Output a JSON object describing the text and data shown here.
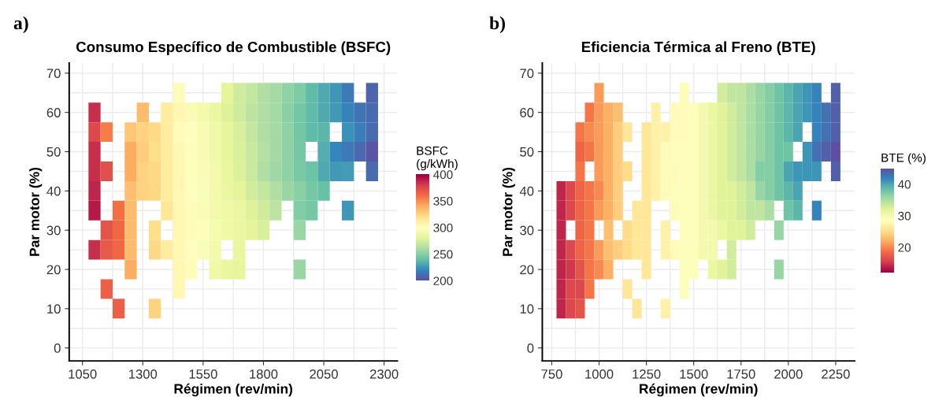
{
  "chart_data": [
    {
      "type": "heatmap",
      "title": "Consumo Específico de Combustible (BSFC)",
      "xlabel": "Régimen (rev/min)",
      "ylabel": "Par motor (%)",
      "clabel": "BSFC\n(g/kWh)",
      "annotations": [
        "a)"
      ],
      "x": [
        1100,
        1150,
        1200,
        1250,
        1300,
        1350,
        1400,
        1450,
        1500,
        1550,
        1600,
        1650,
        1700,
        1750,
        1800,
        1850,
        1900,
        1950,
        2000,
        2050,
        2100,
        2150,
        2200,
        2250
      ],
      "y": [
        65,
        60,
        55,
        50,
        45,
        40,
        35,
        30,
        25,
        20,
        15,
        10
      ],
      "cells": [
        [
          null,
          null,
          null,
          null,
          null,
          null,
          null,
          302,
          null,
          null,
          null,
          280,
          272,
          268,
          262,
          258,
          252,
          247,
          238,
          232,
          225,
          215,
          null,
          208
        ],
        [
          385,
          null,
          null,
          null,
          335,
          null,
          312,
          305,
          295,
          290,
          285,
          278,
          272,
          266,
          262,
          258,
          250,
          244,
          238,
          232,
          226,
          218,
          213,
          210
        ],
        [
          375,
          355,
          null,
          330,
          325,
          322,
          312,
          302,
          300,
          293,
          287,
          282,
          275,
          268,
          262,
          258,
          252,
          244,
          238,
          236,
          null,
          224,
          217,
          210
        ],
        [
          385,
          null,
          null,
          340,
          328,
          320,
          312,
          305,
          298,
          293,
          287,
          282,
          276,
          270,
          264,
          258,
          252,
          245,
          null,
          233,
          220,
          215,
          210,
          202
        ],
        [
          385,
          372,
          null,
          340,
          325,
          323,
          312,
          305,
          298,
          295,
          290,
          283,
          277,
          270,
          262,
          257,
          252,
          246,
          242,
          232,
          226,
          227,
          null,
          210
        ],
        [
          388,
          null,
          null,
          333,
          325,
          323,
          312,
          305,
          300,
          296,
          290,
          285,
          280,
          273,
          268,
          262,
          255,
          250,
          245,
          240,
          null,
          null,
          null,
          null
        ],
        [
          392,
          null,
          360,
          335,
          null,
          null,
          315,
          305,
          302,
          295,
          290,
          287,
          285,
          278,
          272,
          266,
          null,
          248,
          245,
          null,
          null,
          225,
          null,
          null
        ],
        [
          null,
          370,
          362,
          335,
          null,
          320,
          null,
          305,
          302,
          297,
          292,
          287,
          285,
          280,
          275,
          null,
          null,
          255,
          null,
          null,
          null,
          null,
          null,
          null
        ],
        [
          385,
          368,
          362,
          335,
          null,
          322,
          312,
          305,
          300,
          296,
          290,
          null,
          283,
          null,
          null,
          null,
          null,
          null,
          null,
          null,
          null,
          null,
          null,
          null
        ],
        [
          null,
          null,
          null,
          340,
          null,
          null,
          null,
          305,
          303,
          null,
          288,
          283,
          282,
          null,
          null,
          null,
          null,
          255,
          null,
          null,
          null,
          null,
          null,
          null
        ],
        [
          null,
          365,
          null,
          null,
          null,
          null,
          null,
          305,
          null,
          null,
          null,
          null,
          null,
          null,
          null,
          null,
          null,
          null,
          null,
          null,
          null,
          null,
          null,
          null
        ],
        [
          null,
          null,
          365,
          null,
          null,
          325,
          null,
          null,
          null,
          null,
          null,
          null,
          null,
          null,
          null,
          null,
          null,
          null,
          null,
          null,
          null,
          null,
          null,
          null
        ]
      ],
      "clim": [
        400,
        200
      ],
      "cticks": [
        200,
        250,
        300,
        350,
        400
      ],
      "xlim": [
        995,
        2355
      ],
      "xticks": [
        1050,
        1300,
        1550,
        1800,
        2050,
        2300
      ],
      "ylim": [
        -3.3,
        72.6
      ],
      "yticks": [
        0,
        10,
        20,
        30,
        40,
        50,
        60,
        70
      ],
      "grid": true
    },
    {
      "type": "heatmap",
      "title": "Eficiencia Térmica al Freno (BTE)",
      "xlabel": "Régimen (rev/min)",
      "ylabel": "Par motor (%)",
      "clabel": "BTE (%)",
      "annotations": [
        "b)"
      ],
      "x": [
        800,
        850,
        900,
        950,
        1000,
        1050,
        1100,
        1150,
        1200,
        1250,
        1300,
        1350,
        1400,
        1450,
        1500,
        1550,
        1600,
        1650,
        1700,
        1750,
        1800,
        1850,
        1900,
        1950,
        2000,
        2050,
        2100,
        2150,
        2200,
        2250
      ],
      "y": [
        65,
        60,
        55,
        50,
        45,
        40,
        35,
        30,
        25,
        20,
        15,
        10
      ],
      "cells": [
        [
          null,
          null,
          null,
          null,
          21,
          null,
          null,
          null,
          null,
          null,
          null,
          null,
          null,
          28,
          null,
          null,
          null,
          33,
          34,
          34,
          35,
          36,
          37,
          38,
          39,
          40,
          41,
          42,
          null,
          44
        ],
        [
          null,
          null,
          null,
          19,
          21,
          22,
          23,
          null,
          null,
          null,
          27,
          null,
          28,
          28,
          29,
          30,
          31,
          32,
          33,
          34,
          35,
          36,
          37,
          38,
          39,
          40,
          41,
          42,
          43,
          44
        ],
        [
          null,
          null,
          19,
          20,
          21,
          22,
          24,
          26,
          null,
          26,
          27,
          27,
          28,
          28,
          29,
          30,
          31,
          32,
          33,
          34,
          35,
          36,
          37,
          38,
          39,
          40,
          null,
          42,
          43,
          44
        ],
        [
          null,
          null,
          18,
          19,
          21,
          22,
          24,
          null,
          null,
          26,
          27,
          28,
          29,
          29,
          29,
          30,
          31,
          32,
          33,
          34,
          35,
          36,
          37,
          38,
          38,
          null,
          41,
          43,
          44,
          45
        ],
        [
          null,
          null,
          19,
          null,
          21,
          22,
          24,
          25,
          null,
          26,
          27,
          28,
          28,
          29,
          29,
          30,
          31,
          32,
          33,
          34,
          35,
          37,
          37,
          38,
          40,
          41,
          41,
          41,
          null,
          44
        ],
        [
          14,
          16,
          18,
          19,
          20,
          22,
          24,
          null,
          null,
          26,
          27,
          28,
          29,
          29,
          29,
          30,
          31,
          32,
          32,
          33,
          34,
          36,
          37,
          38,
          39,
          40,
          null,
          null,
          null,
          null
        ],
        [
          14,
          16,
          18,
          19,
          21,
          22,
          24,
          null,
          26,
          26,
          null,
          null,
          28,
          29,
          29,
          30,
          31,
          32,
          32,
          33,
          34,
          34,
          35,
          null,
          38,
          39,
          null,
          42,
          null,
          null
        ],
        [
          14,
          null,
          18,
          19,
          null,
          23,
          null,
          25,
          26,
          26,
          null,
          27,
          null,
          29,
          29,
          30,
          30,
          31,
          32,
          32,
          33,
          null,
          null,
          36,
          null,
          null,
          null,
          null,
          null,
          null
        ],
        [
          14,
          16,
          18,
          19,
          21,
          23,
          24,
          25,
          26,
          26,
          null,
          27,
          28,
          29,
          29,
          30,
          30,
          null,
          33,
          null,
          null,
          null,
          null,
          null,
          null,
          null,
          null,
          null,
          null,
          null
        ],
        [
          14,
          15,
          17,
          19,
          20,
          22,
          null,
          null,
          null,
          26,
          null,
          null,
          null,
          29,
          29,
          null,
          31,
          32,
          33,
          null,
          null,
          null,
          null,
          36,
          null,
          null,
          null,
          null,
          null,
          null
        ],
        [
          14,
          16,
          16,
          19,
          null,
          null,
          null,
          26,
          null,
          null,
          null,
          null,
          null,
          29,
          null,
          null,
          null,
          null,
          null,
          null,
          null,
          null,
          null,
          null,
          null,
          null,
          null,
          null,
          null,
          null
        ],
        [
          14,
          16,
          17,
          null,
          null,
          null,
          null,
          null,
          26,
          null,
          null,
          27,
          null,
          null,
          null,
          null,
          null,
          null,
          null,
          null,
          null,
          null,
          null,
          null,
          null,
          null,
          null,
          null,
          null,
          null
        ]
      ],
      "clim": [
        12,
        45
      ],
      "cticks": [
        20,
        30,
        40
      ],
      "xlim": [
        700,
        2350
      ],
      "xticks": [
        750,
        1000,
        1250,
        1500,
        1750,
        2000,
        2250
      ],
      "ylim": [
        -3.3,
        72.6
      ],
      "yticks": [
        0,
        10,
        20,
        30,
        40,
        50,
        60,
        70
      ],
      "grid": true
    }
  ]
}
